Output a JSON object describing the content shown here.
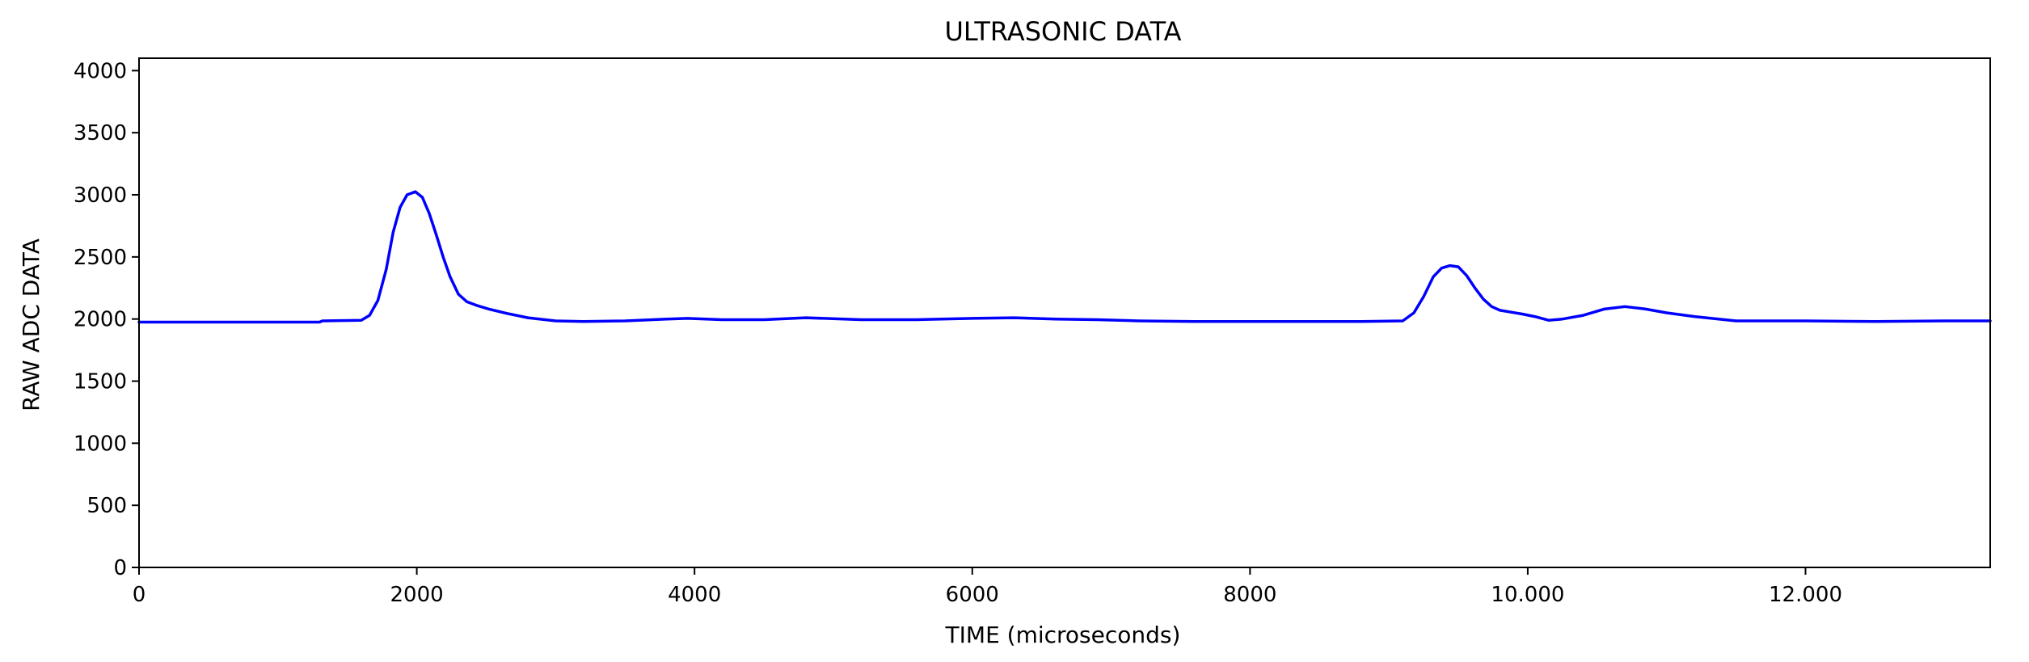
{
  "chart_data": {
    "type": "line",
    "title": "ULTRASONIC DATA",
    "xlabel": "TIME (microseconds)",
    "ylabel": "RAW ADC DATA",
    "xlim": [
      0,
      13330
    ],
    "ylim": [
      0,
      4100
    ],
    "grid": false,
    "x_ticks": [
      {
        "value": 0,
        "label": "0"
      },
      {
        "value": 2000,
        "label": "2000"
      },
      {
        "value": 4000,
        "label": "4000"
      },
      {
        "value": 6000,
        "label": "6000"
      },
      {
        "value": 8000,
        "label": "8000"
      },
      {
        "value": 10000,
        "label": "10.000"
      },
      {
        "value": 12000,
        "label": "12.000"
      }
    ],
    "y_ticks": [
      {
        "value": 0,
        "label": "0"
      },
      {
        "value": 500,
        "label": "500"
      },
      {
        "value": 1000,
        "label": "1000"
      },
      {
        "value": 1500,
        "label": "1500"
      },
      {
        "value": 2000,
        "label": "2000"
      },
      {
        "value": 2500,
        "label": "2500"
      },
      {
        "value": 3000,
        "label": "3000"
      },
      {
        "value": 3500,
        "label": "3500"
      },
      {
        "value": 4000,
        "label": "4000"
      }
    ],
    "series": [
      {
        "name": "raw adc data",
        "color": "#0000ff",
        "x": [
          0,
          1300,
          1320,
          1600,
          1660,
          1720,
          1780,
          1830,
          1880,
          1930,
          1990,
          2040,
          2090,
          2140,
          2190,
          2240,
          2300,
          2360,
          2430,
          2520,
          2650,
          2800,
          3000,
          3200,
          3500,
          3800,
          3950,
          4200,
          4500,
          4800,
          5200,
          5600,
          6000,
          6300,
          6600,
          6900,
          7200,
          7600,
          8000,
          8400,
          8800,
          9100,
          9180,
          9250,
          9320,
          9380,
          9440,
          9500,
          9560,
          9620,
          9680,
          9740,
          9800,
          9880,
          9960,
          10050,
          10150,
          10250,
          10400,
          10550,
          10700,
          10850,
          11000,
          11200,
          11500,
          12000,
          12500,
          13000,
          13330
        ],
        "y": [
          1975,
          1975,
          1985,
          1990,
          2030,
          2150,
          2400,
          2700,
          2900,
          3000,
          3025,
          2980,
          2850,
          2680,
          2500,
          2340,
          2200,
          2140,
          2110,
          2080,
          2045,
          2010,
          1985,
          1980,
          1985,
          2000,
          2005,
          1995,
          1995,
          2010,
          1995,
          1995,
          2005,
          2010,
          2000,
          1995,
          1985,
          1980,
          1980,
          1980,
          1980,
          1985,
          2050,
          2180,
          2340,
          2410,
          2430,
          2420,
          2350,
          2250,
          2160,
          2100,
          2070,
          2055,
          2040,
          2020,
          1990,
          2000,
          2030,
          2080,
          2100,
          2080,
          2050,
          2020,
          1985,
          1985,
          1980,
          1985,
          1985
        ]
      }
    ]
  }
}
